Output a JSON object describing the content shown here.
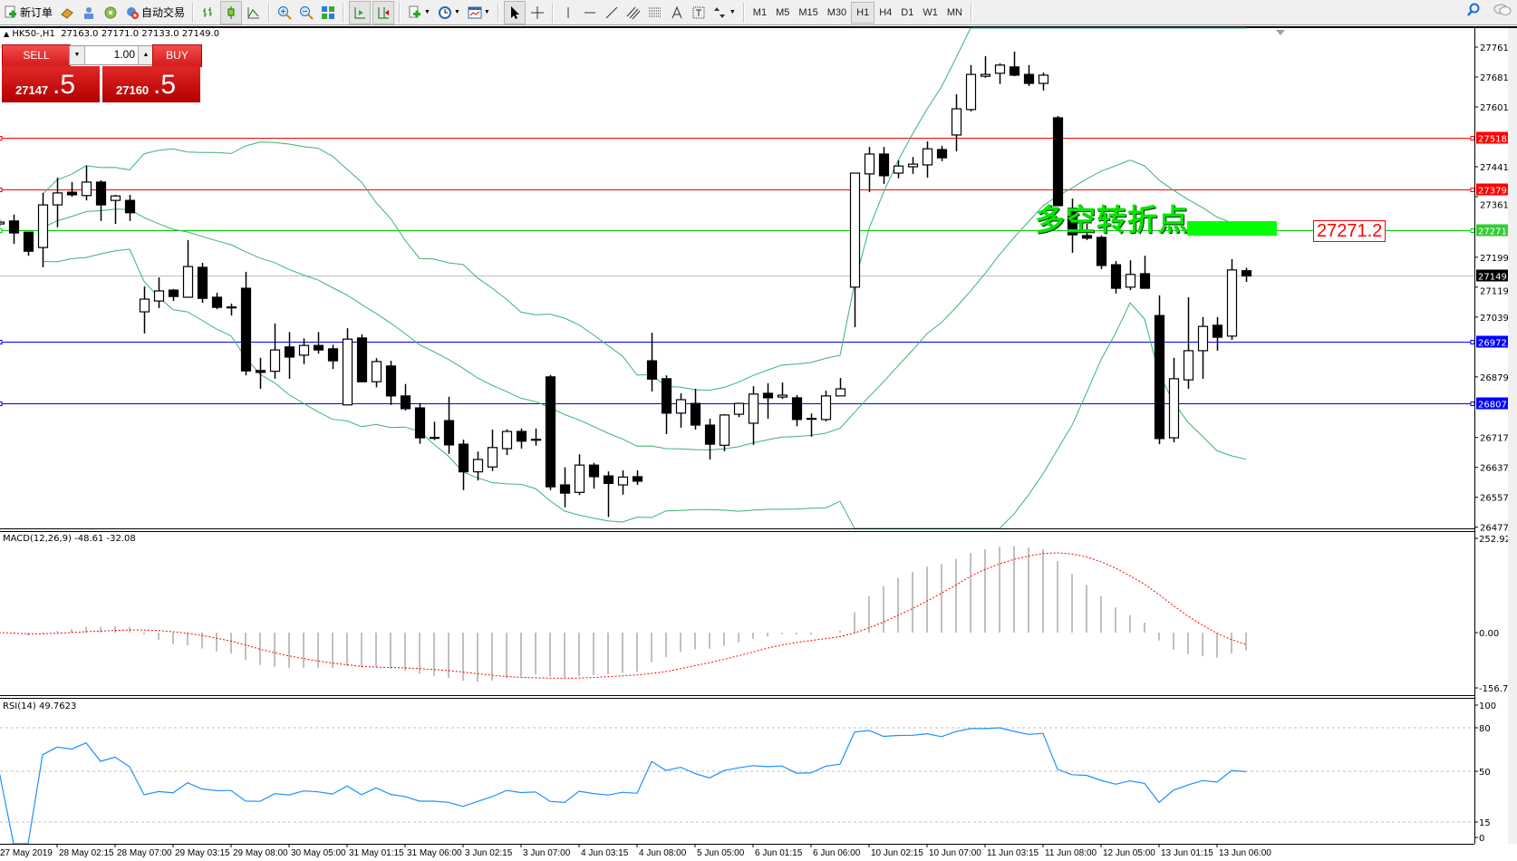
{
  "toolbar": {
    "new_order": "新订单",
    "auto_trading": "自动交易",
    "periods": [
      "M1",
      "M5",
      "M15",
      "M30",
      "H1",
      "H4",
      "D1",
      "W1",
      "MN"
    ],
    "active_period": "H1"
  },
  "chart": {
    "symbol_header": "HK50-,H1",
    "ohlc_header": "27163.0 27171.0 27133.0 27149.0",
    "macd_label": "MACD(12,26,9) -48.61 -32.08",
    "rsi_label": "RSI(14) 49.7623"
  },
  "trade_panel": {
    "sell": "SELL",
    "buy": "BUY",
    "lot": "1.00",
    "sell_price_main": "27147",
    "sell_price_frac": ".5",
    "buy_price_main": "27160",
    "buy_price_frac": ".5"
  },
  "annotation": {
    "text": "多空转折点",
    "price_label": "27271.2"
  },
  "colors": {
    "bollinger": "#3cb371",
    "macd_hist": "#c0c0c0",
    "macd_signal": "#ff0000",
    "rsi": "#1e90ff",
    "resistance": "#ff0000",
    "pivot": "#00cc00",
    "support": "#0000ff",
    "bid": "#c0c0c0"
  },
  "chart_data": {
    "type": "candlestick",
    "symbol": "HK50-",
    "timeframe": "H1",
    "candles_ohlc": [
      [
        27288,
        27300,
        27280,
        27293
      ],
      [
        27296,
        27313,
        27235,
        27264
      ],
      [
        27266,
        27266,
        27203,
        27215
      ],
      [
        27225,
        27371,
        27172,
        27339
      ],
      [
        27339,
        27412,
        27279,
        27371
      ],
      [
        27373,
        27400,
        27361,
        27366
      ],
      [
        27364,
        27444,
        27351,
        27400
      ],
      [
        27400,
        27405,
        27296,
        27339
      ],
      [
        27351,
        27366,
        27288,
        27363
      ],
      [
        27351,
        27366,
        27296,
        27318
      ],
      [
        27053,
        27121,
        26995,
        27087
      ],
      [
        27082,
        27145,
        27063,
        27109
      ],
      [
        27111,
        27114,
        27082,
        27094
      ],
      [
        27092,
        27245,
        27092,
        27174
      ],
      [
        27172,
        27184,
        27077,
        27089
      ],
      [
        27092,
        27104,
        27060,
        27065
      ],
      [
        27066,
        27075,
        27043,
        27065
      ],
      [
        27116,
        27160,
        26883,
        26895
      ],
      [
        26896,
        26930,
        26847,
        26891
      ],
      [
        26894,
        27022,
        26874,
        26951
      ],
      [
        26959,
        26999,
        26874,
        26932
      ],
      [
        26937,
        26982,
        26913,
        26963
      ],
      [
        26963,
        26999,
        26941,
        26951
      ],
      [
        26954,
        26965,
        26900,
        26922
      ],
      [
        26804,
        27009,
        26804,
        26980
      ],
      [
        26983,
        26993,
        26866,
        26866
      ],
      [
        26866,
        26929,
        26851,
        26920
      ],
      [
        26908,
        26922,
        26804,
        26828
      ],
      [
        26828,
        26860,
        26789,
        26794
      ],
      [
        26796,
        26809,
        26700,
        26716
      ],
      [
        26717,
        26759,
        26710,
        26716
      ],
      [
        26762,
        26826,
        26673,
        26697
      ],
      [
        26699,
        26711,
        26576,
        26625
      ],
      [
        26625,
        26679,
        26602,
        26658
      ],
      [
        26638,
        26738,
        26627,
        26690
      ],
      [
        26687,
        26739,
        26670,
        26733
      ],
      [
        26733,
        26741,
        26687,
        26707
      ],
      [
        26712,
        26741,
        26695,
        26711
      ],
      [
        26879,
        26884,
        26576,
        26585
      ],
      [
        26590,
        26637,
        26530,
        26568
      ],
      [
        26570,
        26672,
        26563,
        26643
      ],
      [
        26643,
        26649,
        26580,
        26612
      ],
      [
        26614,
        26626,
        26504,
        26594
      ],
      [
        26590,
        26629,
        26564,
        26611
      ],
      [
        26612,
        26629,
        26590,
        26600
      ],
      [
        26922,
        26997,
        26840,
        26873
      ],
      [
        26874,
        26883,
        26726,
        26782
      ],
      [
        26782,
        26835,
        26743,
        26818
      ],
      [
        26808,
        26847,
        26738,
        26750
      ],
      [
        26750,
        26767,
        26658,
        26699
      ],
      [
        26696,
        26779,
        26680,
        26777
      ],
      [
        26779,
        26810,
        26771,
        26808
      ],
      [
        26755,
        26854,
        26697,
        26833
      ],
      [
        26835,
        26862,
        26767,
        26823
      ],
      [
        26825,
        26864,
        26820,
        26830
      ],
      [
        26823,
        26830,
        26747,
        26765
      ],
      [
        26768,
        26781,
        26719,
        26767
      ],
      [
        26765,
        26842,
        26760,
        26828
      ],
      [
        26828,
        26876,
        26828,
        26847
      ],
      [
        27119,
        27424,
        27012,
        27424
      ],
      [
        27422,
        27494,
        27373,
        27475
      ],
      [
        27475,
        27494,
        27395,
        27417
      ],
      [
        27424,
        27458,
        27410,
        27443
      ],
      [
        27441,
        27467,
        27422,
        27448
      ],
      [
        27446,
        27509,
        27412,
        27489
      ],
      [
        27487,
        27497,
        27456,
        27465
      ],
      [
        27526,
        27635,
        27482,
        27596
      ],
      [
        27594,
        27713,
        27589,
        27688
      ],
      [
        27683,
        27737,
        27679,
        27688
      ],
      [
        27691,
        27718,
        27662,
        27713
      ],
      [
        27708,
        27749,
        27683,
        27686
      ],
      [
        27688,
        27713,
        27657,
        27664
      ],
      [
        27664,
        27693,
        27645,
        27686
      ],
      [
        27572,
        27577,
        27337,
        27337
      ],
      [
        27330,
        27356,
        27211,
        27259
      ],
      [
        27257,
        27288,
        27245,
        27250
      ],
      [
        27252,
        27257,
        27167,
        27177
      ],
      [
        27179,
        27189,
        27102,
        27116
      ],
      [
        27119,
        27191,
        27111,
        27153
      ],
      [
        27155,
        27203,
        27116,
        27116
      ],
      [
        27043,
        27097,
        26699,
        26714
      ],
      [
        26716,
        26930,
        26704,
        26874
      ],
      [
        26871,
        27092,
        26847,
        26949
      ],
      [
        26949,
        27039,
        26874,
        27014
      ],
      [
        27017,
        27039,
        26949,
        26985
      ],
      [
        26988,
        27194,
        26978,
        27165
      ],
      [
        27163,
        27171,
        27133,
        27149
      ]
    ],
    "price_range": [
      26476,
      27812
    ],
    "price_ticks": [
      "27761.0",
      "27681.0",
      "27601.0",
      "27441.0",
      "27361.0",
      "27199.0",
      "27119.0",
      "27039.0",
      "26879.0",
      "26717.0",
      "26637.0",
      "26557.0",
      "26477.0"
    ],
    "time_labels": [
      "27 May 2019",
      "28 May 02:15",
      "28 May 07:00",
      "29 May 03:15",
      "29 May 08:00",
      "30 May 05:00",
      "31 May 01:15",
      "31 May 06:00",
      "3 Jun 02:15",
      "3 Jun 07:00",
      "4 Jun 03:15",
      "4 Jun 08:00",
      "5 Jun 05:00",
      "6 Jun 01:15",
      "6 Jun 06:00",
      "10 Jun 02:15",
      "10 Jun 07:00",
      "11 Jun 03:15",
      "11 Jun 08:00",
      "12 Jun 05:00",
      "13 Jun 01:15",
      "13 Jun 06:00"
    ],
    "levels": [
      {
        "price": 27518.7,
        "label": "27518.7",
        "kind": "resistance"
      },
      {
        "price": 27379.5,
        "label": "27379.5",
        "kind": "resistance"
      },
      {
        "price": 27271.2,
        "label": "27271.2",
        "kind": "pivot"
      },
      {
        "price": 27149.0,
        "label": "27149.0",
        "kind": "bid"
      },
      {
        "price": 26972.2,
        "label": "26972.2",
        "kind": "support"
      },
      {
        "price": 26807.2,
        "label": "26807.2",
        "kind": "support"
      }
    ],
    "bollinger": {
      "period": 20,
      "deviation": 2
    },
    "macd": {
      "fast": 12,
      "slow": 26,
      "signal": 9,
      "range": [
        -156.7,
        252.92
      ],
      "ticks": [
        "252.92",
        "0.00",
        "-156.7"
      ]
    },
    "rsi": {
      "period": 14,
      "range": [
        0,
        100
      ],
      "levels": [
        80,
        50,
        15
      ],
      "ticks": [
        "100",
        "80",
        "50",
        "15",
        "0"
      ]
    }
  }
}
